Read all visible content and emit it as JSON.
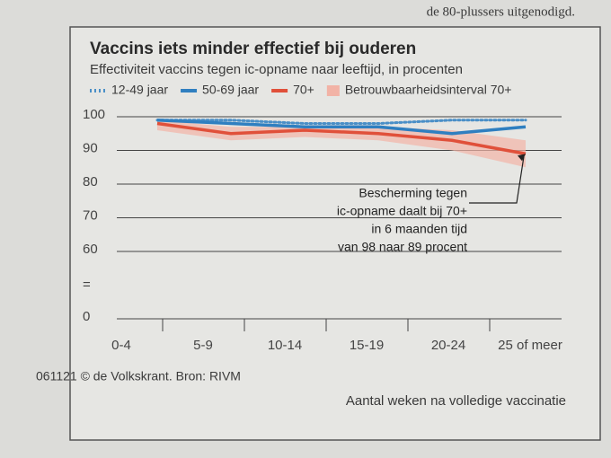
{
  "header_text": "de 80-plussers uitgenodigd.",
  "chart_data": {
    "type": "line",
    "title": "Vaccins iets minder effectief bij ouderen",
    "subtitle": "Effectiviteit vaccins tegen ic-opname naar leeftijd, in procenten",
    "source": "061121 © de Volkskrant. Bron: RIVM",
    "x_label": "Aantal weken na volledige vaccinatie",
    "categories": [
      "0-4",
      "5-9",
      "10-14",
      "15-19",
      "20-24",
      "25 of meer"
    ],
    "series": [
      {
        "name": "12-49 jaar",
        "color": "#4a8fc7",
        "dotted": true,
        "values": [
          99,
          99,
          98,
          98,
          99,
          99
        ]
      },
      {
        "name": "50-69 jaar",
        "color": "#2f7fc0",
        "values": [
          99,
          98,
          97,
          97,
          95,
          97
        ]
      },
      {
        "name": "70+",
        "color": "#e0503a",
        "values": [
          98,
          95,
          96,
          95,
          93,
          89
        ]
      }
    ],
    "band": {
      "name": "Betrouwbaarheidsinterval 70+",
      "color": "#f2b3a6",
      "lower": [
        96,
        93,
        94,
        93,
        90,
        85
      ],
      "upper": [
        99,
        97,
        97,
        97,
        96,
        93
      ]
    },
    "annotation": [
      "Bescherming tegen",
      "ic-opname daalt bij 70+",
      "in 6 maanden tijd",
      "van 98 naar 89 procent"
    ],
    "ylim": [
      0,
      100
    ],
    "yticks": [
      100,
      90,
      80,
      70,
      60,
      0
    ],
    "ybreak": [
      0,
      60
    ],
    "ybreak_label": "=",
    "grid": true
  }
}
